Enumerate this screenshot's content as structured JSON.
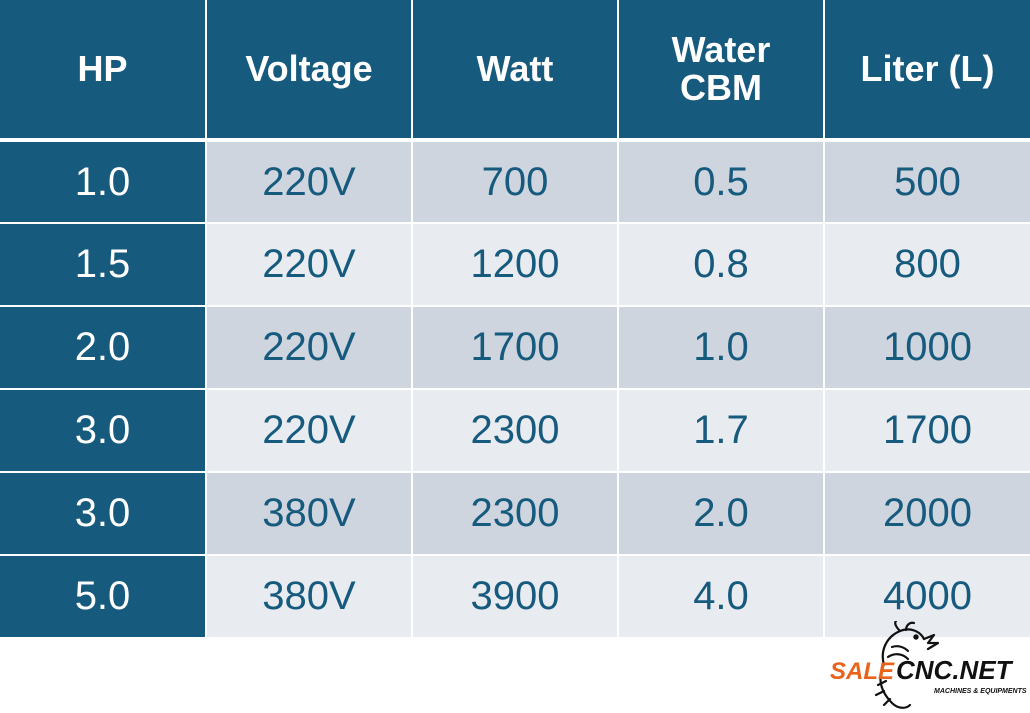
{
  "table": {
    "headers": [
      "HP",
      "Voltage",
      "Watt",
      "Water\nCBM",
      "Liter (L)"
    ],
    "rows": [
      [
        "1.0",
        "220V",
        "700",
        "0.5",
        "500"
      ],
      [
        "1.5",
        "220V",
        "1200",
        "0.8",
        "800"
      ],
      [
        "2.0",
        "220V",
        "1700",
        "1.0",
        "1000"
      ],
      [
        "3.0",
        "220V",
        "2300",
        "1.7",
        "1700"
      ],
      [
        "3.0",
        "380V",
        "2300",
        "2.0",
        "2000"
      ],
      [
        "5.0",
        "380V",
        "3900",
        "4.0",
        "4000"
      ]
    ]
  },
  "logo": {
    "brand_sale": "SALE",
    "brand_cnc": "CNC.NET",
    "tagline": "MACHINES & EQUIPMENTS"
  },
  "colors": {
    "header_bg": "#165a7e",
    "row_dark": "#cfd5de",
    "row_light": "#e8ebef",
    "logo_orange": "#e8641b"
  },
  "icons": {
    "logo_mark": "dragon-icon"
  }
}
